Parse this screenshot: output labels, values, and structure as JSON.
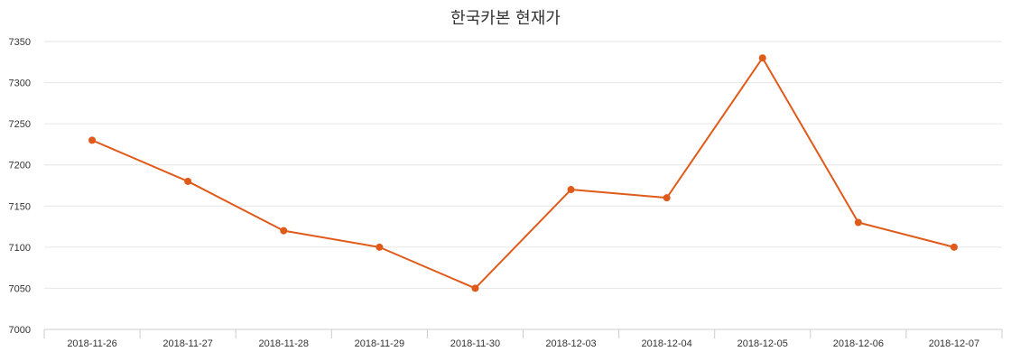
{
  "chart_data": {
    "type": "line",
    "title": "한국카본 현재가",
    "categories": [
      "2018-11-26",
      "2018-11-27",
      "2018-11-28",
      "2018-11-29",
      "2018-11-30",
      "2018-12-03",
      "2018-12-04",
      "2018-12-05",
      "2018-12-06",
      "2018-12-07"
    ],
    "series": [
      {
        "values": [
          7230,
          7180,
          7120,
          7100,
          7050,
          7170,
          7160,
          7330,
          7130,
          7100
        ],
        "color": "#e05a1a"
      }
    ],
    "ylim": [
      7000,
      7350
    ],
    "yticks": [
      7000,
      7050,
      7100,
      7150,
      7200,
      7250,
      7300,
      7350
    ],
    "grid": true,
    "legend": "none",
    "colors": {
      "line": "#e05a1a",
      "grid": "#e6e6e6",
      "axis": "#cccccc",
      "text": "#333333"
    }
  }
}
